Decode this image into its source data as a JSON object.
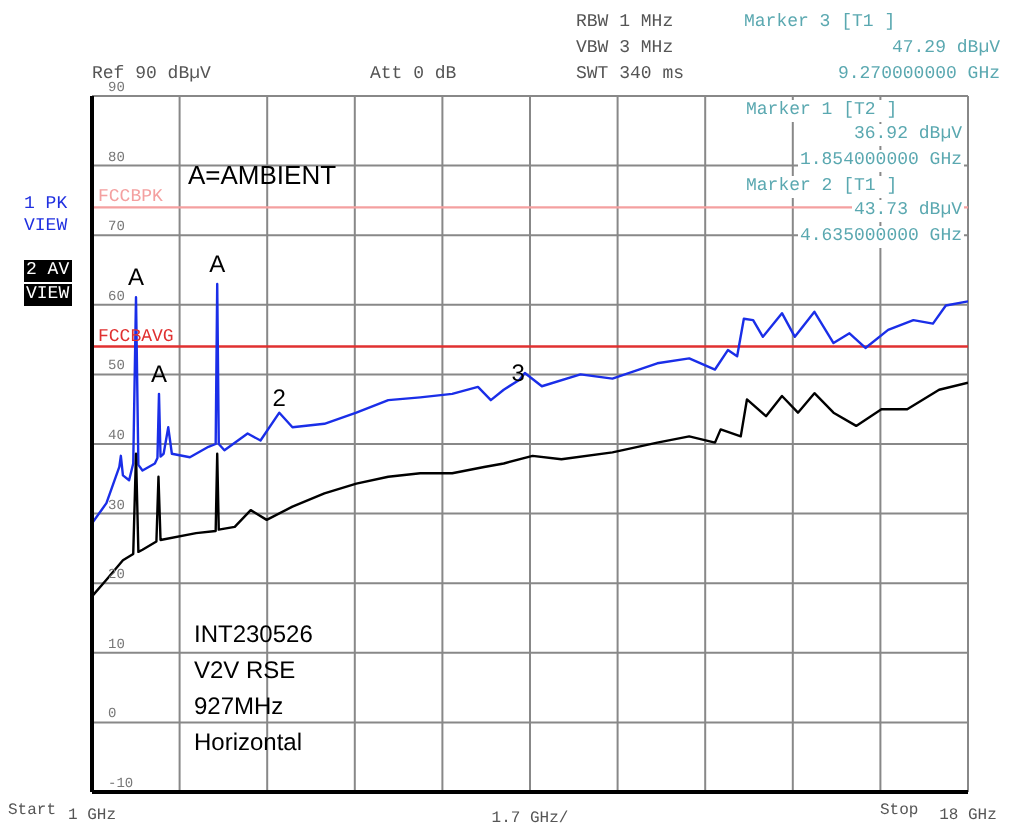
{
  "chart_data": {
    "type": "line",
    "legend": false,
    "grid": true,
    "xlabel": "1.7 GHz/",
    "marker": "none",
    "line_style": "solid",
    "ylim": [
      -10,
      90
    ],
    "yticks": [
      -10,
      0,
      10,
      20,
      30,
      40,
      50,
      60,
      70,
      80,
      90
    ],
    "xlim": [
      1,
      18
    ],
    "xticks": [
      {
        "value": 1,
        "label": "1 GHz"
      },
      {
        "value": 2.7,
        "label": null
      },
      {
        "value": 4.4,
        "label": null
      },
      {
        "value": 6.1,
        "label": null
      },
      {
        "value": 7.8,
        "label": null
      },
      {
        "value": 9.5,
        "label": null
      },
      {
        "value": 11.2,
        "label": null
      },
      {
        "value": 12.9,
        "label": null
      },
      {
        "value": 14.6,
        "label": null
      },
      {
        "value": 16.3,
        "label": null
      },
      {
        "value": 18,
        "label": "18 GHz"
      }
    ],
    "series": [
      {
        "color": "#1a2ee8",
        "x": [
          1.0,
          1.28,
          1.53,
          1.56,
          1.6,
          1.72,
          1.8,
          1.854,
          1.9,
          1.98,
          2.22,
          2.27,
          2.3,
          2.33,
          2.39,
          2.48,
          2.55,
          2.9,
          3.26,
          3.4,
          3.43,
          3.46,
          3.57,
          4.02,
          4.27,
          4.635,
          4.89,
          5.51,
          6.13,
          6.75,
          7.37,
          7.99,
          8.49,
          8.74,
          8.99,
          9.29,
          9.4,
          9.73,
          10.48,
          11.1,
          11.97,
          12.59,
          13.09,
          13.34,
          13.52,
          13.65,
          13.83,
          14.02,
          14.39,
          14.64,
          15.02,
          15.39,
          15.7,
          16.01,
          16.45,
          16.94,
          17.32,
          17.57,
          18.0
        ],
        "values": [
          28.6,
          31.5,
          36.7,
          38.3,
          35.5,
          34.8,
          37.2,
          61.1,
          37.0,
          36.2,
          37.2,
          38.0,
          47.2,
          38.2,
          38.6,
          42.4,
          38.6,
          38.1,
          39.6,
          40.0,
          63.0,
          40.0,
          39.1,
          41.5,
          40.5,
          44.5,
          42.4,
          42.9,
          44.5,
          46.3,
          46.7,
          47.2,
          48.2,
          46.3,
          47.8,
          49.2,
          50.2,
          48.3,
          50.0,
          49.4,
          51.6,
          52.3,
          50.7,
          53.5,
          52.6,
          58.0,
          57.8,
          55.4,
          58.8,
          55.4,
          59.0,
          54.5,
          55.9,
          53.8,
          56.4,
          57.8,
          57.3,
          59.9,
          60.5
        ]
      },
      {
        "color": "#000000",
        "x": [
          1.0,
          1.28,
          1.6,
          1.8,
          1.854,
          1.9,
          1.98,
          2.25,
          2.29,
          2.33,
          3.02,
          3.4,
          3.43,
          3.46,
          3.77,
          4.08,
          4.39,
          4.89,
          5.51,
          6.13,
          6.75,
          7.37,
          7.99,
          8.61,
          8.99,
          9.55,
          10.11,
          11.1,
          11.97,
          12.59,
          13.09,
          13.2,
          13.59,
          13.71,
          14.08,
          14.39,
          14.7,
          15.02,
          15.39,
          15.83,
          16.32,
          16.82,
          17.44,
          18.0
        ],
        "values": [
          18.1,
          20.5,
          23.3,
          24.2,
          38.6,
          24.5,
          24.8,
          26.0,
          35.3,
          26.2,
          27.2,
          27.5,
          38.6,
          27.7,
          28.1,
          30.5,
          29.1,
          31.0,
          32.9,
          34.3,
          35.3,
          35.8,
          35.8,
          36.7,
          37.2,
          38.3,
          37.8,
          38.8,
          40.2,
          41.1,
          40.2,
          42.1,
          41.1,
          46.4,
          44.0,
          46.9,
          44.5,
          47.3,
          44.5,
          42.6,
          45.0,
          45.0,
          47.8,
          48.8
        ]
      }
    ],
    "ref_lines": [
      {
        "axis": "y",
        "value": 74,
        "label": "FCCBPK",
        "color": "#f4a0a0"
      },
      {
        "axis": "y",
        "value": 54,
        "label": "FCCBAVG",
        "color": "#e03030"
      }
    ],
    "annotations": [
      "RBW 1 MHz",
      "VBW 3 MHz",
      "SWT 340 ms",
      "Ref 90 dBµV",
      "Att 0 dB",
      "Marker 3 [T1 ]",
      "47.29 dBµV",
      "9.270000000 GHz",
      "Marker 1 [T2 ]",
      "36.92 dBµV",
      "1.854000000 GHz",
      "Marker 2 [T1 ]",
      "43.73 dBµV",
      "4.635000000 GHz",
      "1 PK",
      "VIEW",
      "2 AV",
      "VIEW",
      "A=AMBIENT",
      "INT230526",
      "V2V RSE",
      "927MHz",
      "Horizontal",
      "Start",
      "Stop",
      {
        "text": "A",
        "x": 1.854,
        "y": 61.1
      },
      {
        "text": "A",
        "x": 2.3,
        "y": 47.2
      },
      {
        "text": "A",
        "x": 3.43,
        "y": 63.0
      },
      {
        "text": "2",
        "x": 4.635,
        "y": 43.73
      },
      {
        "text": "3",
        "x": 9.27,
        "y": 47.29
      }
    ]
  }
}
